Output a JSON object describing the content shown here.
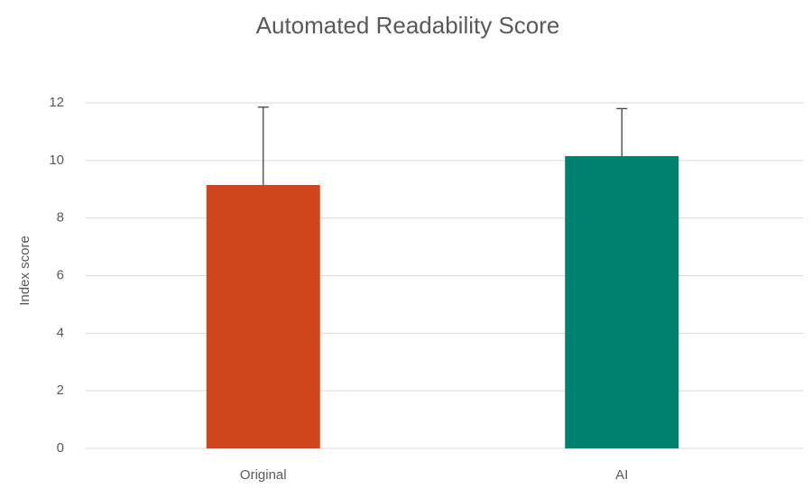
{
  "chart_data": {
    "type": "bar",
    "title": "Automated Readability Score",
    "y_label": "Index score",
    "categories": [
      "Original",
      "AI"
    ],
    "values": [
      9.15,
      10.15
    ],
    "errors": [
      2.7,
      1.65
    ],
    "colors": [
      "#d0461c",
      "#00806f"
    ],
    "ylim": [
      0,
      12
    ],
    "yticks": [
      0,
      2,
      4,
      6,
      8,
      10,
      12
    ],
    "grid": true
  }
}
